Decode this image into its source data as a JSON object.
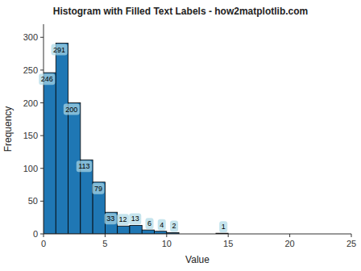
{
  "chart_data": {
    "type": "histogram",
    "title": "Histogram with Filled Text Labels - how2matplotlib.com",
    "xlabel": "Value",
    "ylabel": "Frequency",
    "bins": [
      0,
      1,
      2,
      3,
      4,
      5,
      6,
      7,
      8,
      9,
      10,
      11,
      12,
      13,
      14,
      15,
      16,
      17,
      18,
      19,
      20,
      21,
      22,
      23,
      24,
      25
    ],
    "values": [
      246,
      291,
      200,
      113,
      79,
      33,
      12,
      13,
      6,
      4,
      2,
      0,
      0,
      0,
      1,
      0,
      0,
      0,
      0,
      0,
      0,
      0,
      0,
      0,
      0
    ],
    "color": "#1f77b4",
    "xlim": [
      0,
      25
    ],
    "ylim": [
      0,
      320
    ],
    "xticks": [
      0,
      5,
      10,
      15,
      20,
      25
    ],
    "yticks": [
      0,
      50,
      100,
      150,
      200,
      250,
      300
    ],
    "grid": false,
    "data_labels": true
  }
}
